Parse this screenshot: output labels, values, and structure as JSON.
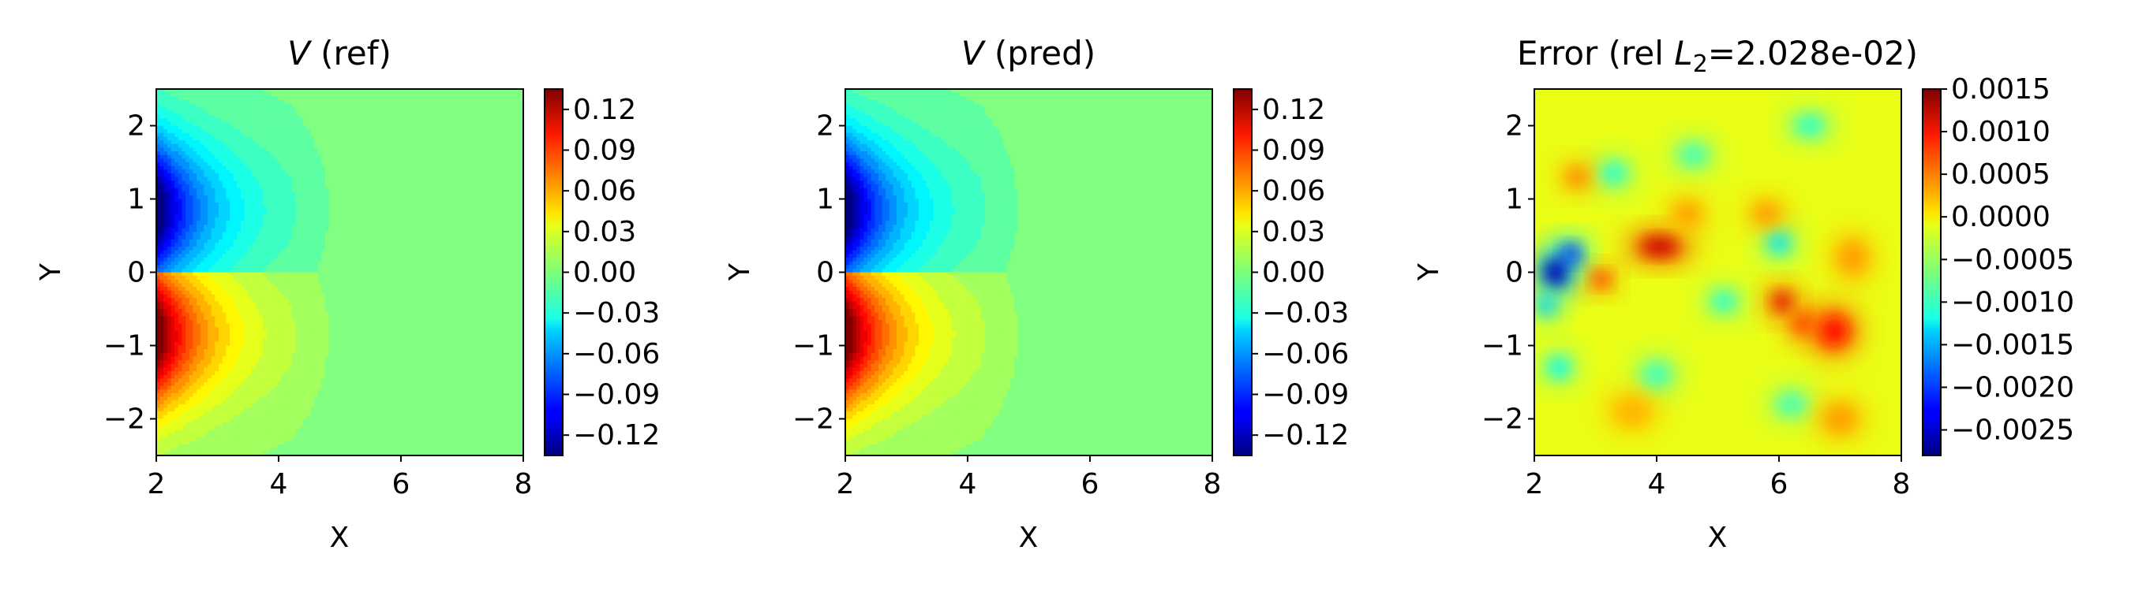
{
  "chart_data": [
    {
      "type": "heatmap",
      "title_italic": "V",
      "title_rest": " (ref)",
      "xlabel": "X",
      "ylabel": "Y",
      "xlim": [
        2,
        8
      ],
      "ylim": [
        -2.5,
        2.5
      ],
      "xticks": [
        "2",
        "4",
        "6",
        "8"
      ],
      "yticks": [
        "2",
        "1",
        "0",
        "−1",
        "−2"
      ],
      "colormap": "jet",
      "colorbar_range": [
        -0.135,
        0.135
      ],
      "colorbar_ticks": [
        "0.12",
        "0.09",
        "0.06",
        "0.03",
        "0.00",
        "−0.03",
        "−0.06",
        "−0.09",
        "−0.12"
      ],
      "field": "dipole",
      "peak": 0.135
    },
    {
      "type": "heatmap",
      "title_italic": "V",
      "title_rest": " (pred)",
      "xlabel": "X",
      "ylabel": "Y",
      "xlim": [
        2,
        8
      ],
      "ylim": [
        -2.5,
        2.5
      ],
      "xticks": [
        "2",
        "4",
        "6",
        "8"
      ],
      "yticks": [
        "2",
        "1",
        "0",
        "−1",
        "−2"
      ],
      "colormap": "jet",
      "colorbar_range": [
        -0.135,
        0.135
      ],
      "colorbar_ticks": [
        "0.12",
        "0.09",
        "0.06",
        "0.03",
        "0.00",
        "−0.03",
        "−0.06",
        "−0.09",
        "−0.12"
      ],
      "field": "dipole",
      "peak": 0.135
    },
    {
      "type": "heatmap",
      "title_pre": "Error (rel ",
      "title_italic": "L",
      "title_sub": "2",
      "title_post": "=2.028e-02)",
      "xlabel": "X",
      "ylabel": "Y",
      "xlim": [
        2,
        8
      ],
      "ylim": [
        -2.5,
        2.5
      ],
      "xticks": [
        "2",
        "4",
        "6",
        "8"
      ],
      "yticks": [
        "2",
        "1",
        "0",
        "−1",
        "−2"
      ],
      "colormap": "jet",
      "colorbar_range": [
        -0.0028,
        0.0015
      ],
      "colorbar_ticks": [
        "0.0015",
        "0.0010",
        "0.0005",
        "0.0000",
        "−0.0005",
        "−0.0010",
        "−0.0015",
        "−0.0020",
        "−0.0025"
      ],
      "field": "error"
    }
  ]
}
